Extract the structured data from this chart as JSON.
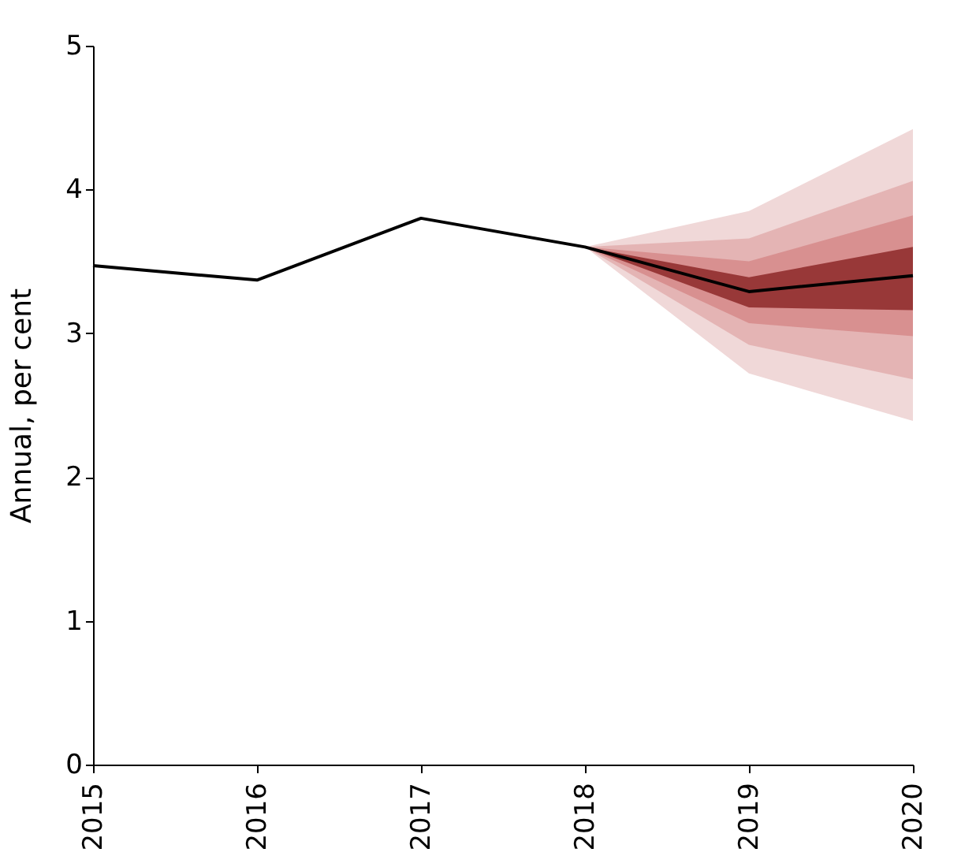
{
  "chart_data": {
    "type": "line",
    "ylabel": "Annual, per cent",
    "x": [
      2015,
      2016,
      2017,
      2018,
      2019,
      2020
    ],
    "xlim": [
      2015,
      2020
    ],
    "xticks": [
      2015,
      2016,
      2017,
      2018,
      2019,
      2020
    ],
    "ylim": [
      0,
      5
    ],
    "yticks": [
      0,
      1,
      2,
      3,
      4,
      5
    ],
    "grid": false,
    "series": [
      {
        "type": "area",
        "color": "#f0d8d8",
        "x": [
          2018,
          2019,
          2020
        ],
        "values": [
          null,
          null,
          null
        ],
        "lower": [
          3.6,
          2.72,
          2.39
        ],
        "upper": [
          3.6,
          3.85,
          4.42
        ]
      },
      {
        "type": "area",
        "color": "#e4b4b4",
        "x": [
          2018,
          2019,
          2020
        ],
        "values": [
          null,
          null,
          null
        ],
        "lower": [
          3.6,
          2.92,
          2.68
        ],
        "upper": [
          3.6,
          3.66,
          4.06
        ]
      },
      {
        "type": "area",
        "color": "#d89090",
        "x": [
          2018,
          2019,
          2020
        ],
        "values": [
          null,
          null,
          null
        ],
        "lower": [
          3.6,
          3.07,
          2.98
        ],
        "upper": [
          3.6,
          3.5,
          3.82
        ]
      },
      {
        "type": "area",
        "color": "#983838",
        "x": [
          2018,
          2019,
          2020
        ],
        "values": [
          null,
          null,
          null
        ],
        "lower": [
          3.6,
          3.18,
          3.16
        ],
        "upper": [
          3.6,
          3.39,
          3.6
        ]
      },
      {
        "color": "#000000",
        "values": [
          3.47,
          3.37,
          3.8,
          3.6,
          3.29,
          3.4
        ]
      }
    ]
  }
}
